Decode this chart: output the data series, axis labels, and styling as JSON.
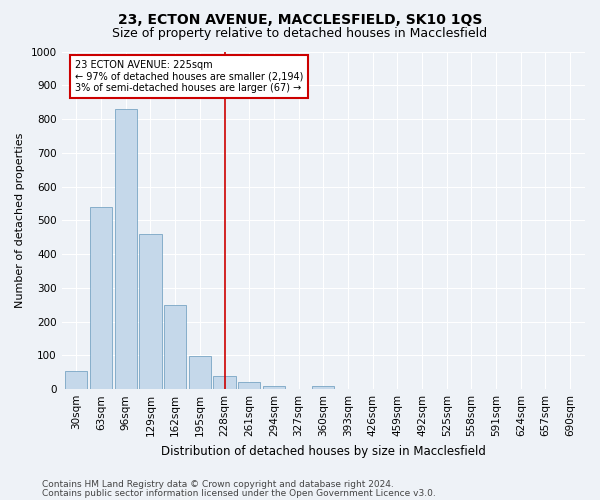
{
  "title1": "23, ECTON AVENUE, MACCLESFIELD, SK10 1QS",
  "title2": "Size of property relative to detached houses in Macclesfield",
  "xlabel": "Distribution of detached houses by size in Macclesfield",
  "ylabel": "Number of detached properties",
  "categories": [
    "30sqm",
    "63sqm",
    "96sqm",
    "129sqm",
    "162sqm",
    "195sqm",
    "228sqm",
    "261sqm",
    "294sqm",
    "327sqm",
    "360sqm",
    "393sqm",
    "426sqm",
    "459sqm",
    "492sqm",
    "525sqm",
    "558sqm",
    "591sqm",
    "624sqm",
    "657sqm",
    "690sqm"
  ],
  "values": [
    55,
    540,
    830,
    460,
    248,
    98,
    38,
    22,
    10,
    0,
    10,
    0,
    0,
    0,
    0,
    0,
    0,
    0,
    0,
    0,
    0
  ],
  "bar_color": "#c5d8ea",
  "bar_edge_color": "#6699bb",
  "vline_x_index": 6,
  "annotation_text": "23 ECTON AVENUE: 225sqm\n← 97% of detached houses are smaller (2,194)\n3% of semi-detached houses are larger (67) →",
  "annotation_box_color": "#ffffff",
  "annotation_box_edge": "#cc0000",
  "ylim": [
    0,
    1000
  ],
  "yticks": [
    0,
    100,
    200,
    300,
    400,
    500,
    600,
    700,
    800,
    900,
    1000
  ],
  "footer1": "Contains HM Land Registry data © Crown copyright and database right 2024.",
  "footer2": "Contains public sector information licensed under the Open Government Licence v3.0.",
  "bg_color": "#eef2f7",
  "plot_bg_color": "#eef2f7",
  "grid_color": "#ffffff",
  "title1_fontsize": 10,
  "title2_fontsize": 9,
  "xlabel_fontsize": 8.5,
  "ylabel_fontsize": 8,
  "tick_fontsize": 7.5,
  "footer_fontsize": 6.5
}
